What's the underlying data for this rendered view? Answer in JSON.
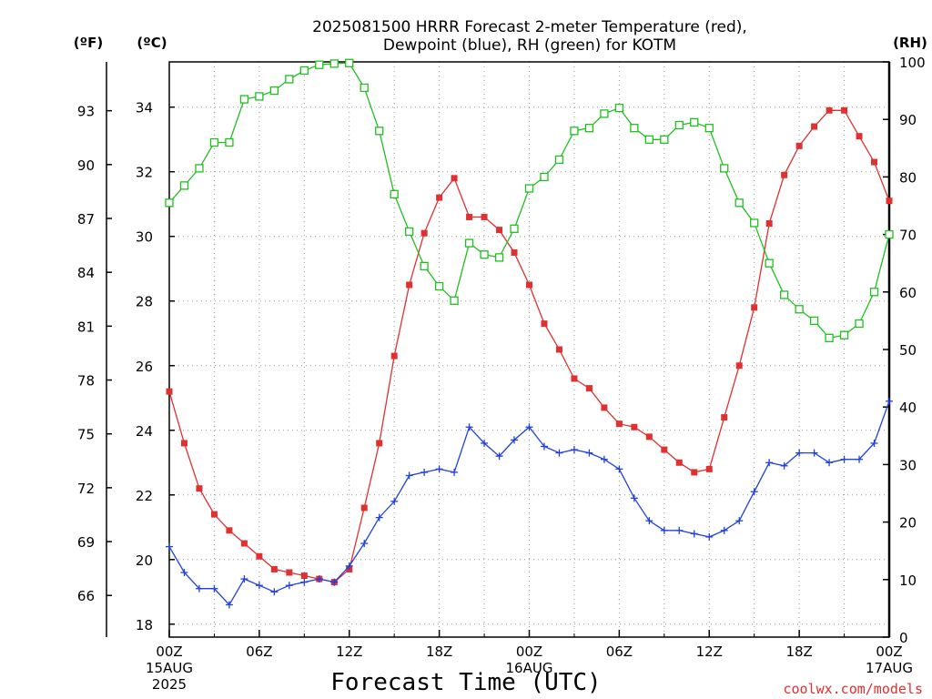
{
  "chart_data": {
    "type": "line",
    "title": [
      "2025081500 HRRR Forecast 2-meter Temperature (red),",
      "Dewpoint (blue), RH (green) for KOTM"
    ],
    "xlabel": "Forecast Time (UTC)",
    "credit": "coolwx.com/models",
    "units": {
      "fahrenheit": "(ºF)",
      "celsius": "(ºC)",
      "rh": "(RH)"
    },
    "x_hours": [
      0,
      1,
      2,
      3,
      4,
      5,
      6,
      7,
      8,
      9,
      10,
      11,
      12,
      13,
      14,
      15,
      16,
      17,
      18,
      19,
      20,
      21,
      22,
      23,
      24,
      25,
      26,
      27,
      28,
      29,
      30,
      31,
      32,
      33,
      34,
      35,
      36,
      37,
      38,
      39,
      40,
      41,
      42,
      43,
      44,
      45,
      46,
      47,
      48
    ],
    "xlim": [
      0,
      48
    ],
    "x_ticks": [
      {
        "hour": 0,
        "lines": [
          "00Z",
          "15AUG",
          "2025"
        ]
      },
      {
        "hour": 6,
        "lines": [
          "06Z"
        ]
      },
      {
        "hour": 12,
        "lines": [
          "12Z"
        ]
      },
      {
        "hour": 18,
        "lines": [
          "18Z"
        ]
      },
      {
        "hour": 24,
        "lines": [
          "00Z",
          "16AUG"
        ]
      },
      {
        "hour": 30,
        "lines": [
          "06Z"
        ]
      },
      {
        "hour": 36,
        "lines": [
          "12Z"
        ]
      },
      {
        "hour": 42,
        "lines": [
          "18Z"
        ]
      },
      {
        "hour": 48,
        "lines": [
          "00Z",
          "17AUG"
        ]
      }
    ],
    "celsius_axis": {
      "ylim": [
        17.6,
        35.4
      ],
      "ticks": [
        18,
        20,
        22,
        24,
        26,
        28,
        30,
        32,
        34
      ]
    },
    "fahrenheit_ticks": [
      66,
      69,
      72,
      75,
      78,
      81,
      84,
      87,
      90,
      93
    ],
    "rh_axis": {
      "ylim": [
        0,
        100
      ],
      "ticks": [
        0,
        10,
        20,
        30,
        40,
        50,
        60,
        70,
        80,
        90,
        100
      ]
    },
    "series": [
      {
        "name": "Temperature (red)",
        "axis": "celsius",
        "color": "#e03030",
        "marker": "filled-square",
        "values": [
          25.2,
          23.6,
          22.2,
          21.4,
          20.9,
          20.5,
          20.1,
          19.7,
          19.6,
          19.5,
          19.4,
          19.3,
          19.7,
          21.6,
          23.6,
          26.3,
          28.5,
          30.1,
          31.2,
          31.8,
          30.6,
          30.6,
          30.2,
          29.5,
          28.5,
          27.3,
          26.5,
          25.6,
          25.3,
          24.7,
          24.2,
          24.1,
          23.8,
          23.4,
          23.0,
          22.7,
          22.8,
          24.4,
          26.0,
          27.8,
          30.4,
          31.9,
          32.8,
          33.4,
          33.9,
          33.9,
          33.1,
          32.3,
          31.1
        ]
      },
      {
        "name": "Dewpoint (blue)",
        "axis": "celsius",
        "color": "#2040e0",
        "marker": "plus",
        "values": [
          20.4,
          19.6,
          19.1,
          19.1,
          18.6,
          19.4,
          19.2,
          19.0,
          19.2,
          19.3,
          19.4,
          19.3,
          19.8,
          20.5,
          21.3,
          21.8,
          22.6,
          22.7,
          22.8,
          22.7,
          24.1,
          23.6,
          23.2,
          23.7,
          24.1,
          23.5,
          23.3,
          23.4,
          23.3,
          23.1,
          22.8,
          21.9,
          21.2,
          20.9,
          20.9,
          20.8,
          20.7,
          20.9,
          21.2,
          22.1,
          23.0,
          22.9,
          23.3,
          23.3,
          23.0,
          23.1,
          23.1,
          23.6,
          24.9
        ]
      },
      {
        "name": "RH (green)",
        "axis": "rh",
        "color": "#20c020",
        "marker": "open-square",
        "values": [
          75.5,
          78.5,
          81.5,
          86,
          86,
          93.5,
          94,
          95,
          97,
          98.5,
          99.5,
          99.7,
          99.8,
          95.5,
          88,
          77,
          70.5,
          64.5,
          61,
          58.5,
          68.5,
          66.5,
          66,
          71,
          78,
          80,
          83,
          88,
          88.5,
          91,
          92,
          88.5,
          86.5,
          86.5,
          89,
          89.5,
          88.5,
          81.5,
          75.5,
          72,
          65,
          59.5,
          57,
          55,
          52,
          52.5,
          54.5,
          60,
          70
        ]
      }
    ],
    "grid": true
  }
}
